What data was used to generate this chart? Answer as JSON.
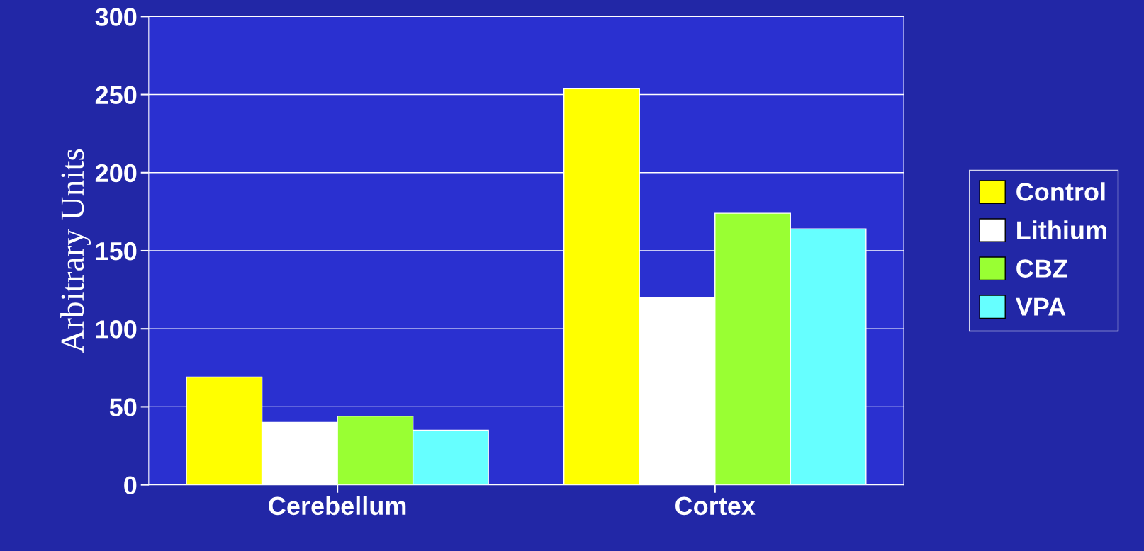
{
  "chart_data": {
    "type": "bar",
    "ylabel": "Arbitrary Units",
    "categories": [
      "Cerebellum",
      "Cortex"
    ],
    "series": [
      {
        "name": "Control",
        "color": "#ffff00",
        "values": [
          69,
          254
        ]
      },
      {
        "name": "Lithium",
        "color": "#ffffff",
        "values": [
          40,
          120
        ]
      },
      {
        "name": "CBZ",
        "color": "#99ff33",
        "values": [
          44,
          174
        ]
      },
      {
        "name": "VPA",
        "color": "#66ffff",
        "values": [
          35,
          164
        ]
      }
    ],
    "ylim": [
      0,
      300
    ],
    "yticks": [
      0,
      50,
      100,
      150,
      200,
      250,
      300
    ],
    "grid": "y",
    "legend": "right"
  }
}
